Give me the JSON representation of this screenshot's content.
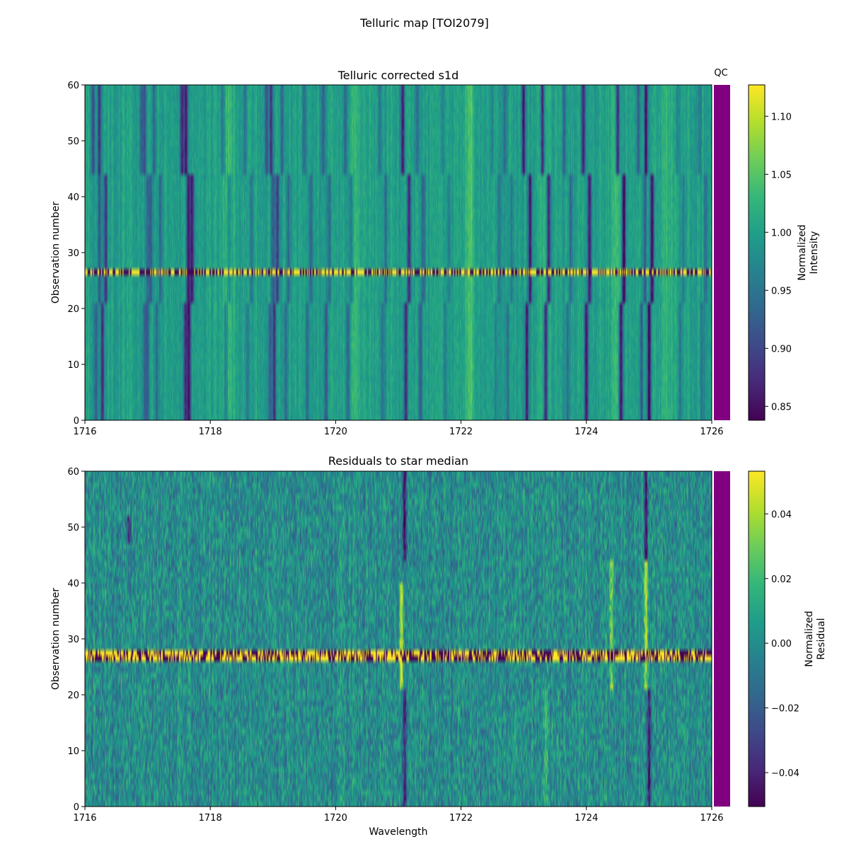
{
  "figure": {
    "suptitle": "Telluric map [TOI2079]"
  },
  "qc_label": "QC",
  "qc_color": "#800080",
  "colormap": "viridis",
  "chart_data": [
    {
      "type": "heatmap",
      "title": "Telluric corrected s1d",
      "xlabel": "",
      "ylabel": "Observation number",
      "xlim": [
        1716,
        1726
      ],
      "ylim": [
        0,
        60
      ],
      "xticks": [
        1716,
        1718,
        1720,
        1722,
        1724,
        1726
      ],
      "yticks": [
        0,
        10,
        20,
        30,
        40,
        50,
        60
      ],
      "colorbar": {
        "label_lines": [
          "Normalized",
          "Intensity"
        ],
        "range": [
          0.838,
          1.127
        ],
        "ticks": [
          "0.85",
          "0.90",
          "0.95",
          "1.00",
          "1.05",
          "1.10"
        ],
        "tick_values": [
          0.85,
          0.9,
          0.95,
          1.0,
          1.05,
          1.1
        ]
      },
      "baseline_value": 1.0,
      "noise_amplitude": 0.028,
      "absorption_lines": [
        {
          "x": 1716.18,
          "depth": 0.08
        },
        {
          "x": 1716.28,
          "depth": 0.12
        },
        {
          "x": 1716.95,
          "depth": 0.06
        },
        {
          "x": 1717.0,
          "depth": 0.08
        },
        {
          "x": 1717.15,
          "depth": 0.06
        },
        {
          "x": 1717.6,
          "depth": 0.13
        },
        {
          "x": 1717.66,
          "depth": 0.14
        },
        {
          "x": 1718.25,
          "depth": 0.06
        },
        {
          "x": 1718.6,
          "depth": 0.05
        },
        {
          "x": 1718.95,
          "depth": 0.08
        },
        {
          "x": 1719.02,
          "depth": 0.12
        },
        {
          "x": 1719.2,
          "depth": 0.06
        },
        {
          "x": 1719.55,
          "depth": 0.06
        },
        {
          "x": 1719.85,
          "depth": 0.07
        },
        {
          "x": 1720.2,
          "depth": 0.06
        },
        {
          "x": 1720.75,
          "depth": 0.05
        },
        {
          "x": 1721.12,
          "depth": 0.14
        },
        {
          "x": 1721.35,
          "depth": 0.07
        },
        {
          "x": 1721.75,
          "depth": 0.04
        },
        {
          "x": 1722.55,
          "depth": 0.04
        },
        {
          "x": 1722.75,
          "depth": 0.05
        },
        {
          "x": 1723.05,
          "depth": 0.14
        },
        {
          "x": 1723.35,
          "depth": 0.15
        },
        {
          "x": 1723.7,
          "depth": 0.06
        },
        {
          "x": 1724.0,
          "depth": 0.14
        },
        {
          "x": 1724.55,
          "depth": 0.16
        },
        {
          "x": 1724.88,
          "depth": 0.08
        },
        {
          "x": 1725.0,
          "depth": 0.16
        },
        {
          "x": 1725.5,
          "depth": 0.04
        },
        {
          "x": 1725.85,
          "depth": 0.05
        }
      ],
      "bright_features": [
        {
          "x": 1718.3,
          "height": 0.04
        },
        {
          "x": 1720.3,
          "height": 0.03
        },
        {
          "x": 1722.15,
          "height": 0.05
        },
        {
          "x": 1723.35,
          "height": 0.03
        },
        {
          "x": 1724.45,
          "height": 0.04
        },
        {
          "x": 1725.3,
          "height": 0.03
        }
      ],
      "line_shift_epochs": [
        {
          "rows": [
            0,
            21
          ],
          "shift": 0.0
        },
        {
          "rows": [
            21,
            44
          ],
          "shift": 0.05
        },
        {
          "rows": [
            44,
            60
          ],
          "shift": -0.05
        }
      ],
      "bad_observations": [
        26
      ]
    },
    {
      "type": "heatmap",
      "title": "Residuals to star median",
      "xlabel": "Wavelength",
      "ylabel": "Observation number",
      "xlim": [
        1716,
        1726
      ],
      "ylim": [
        0,
        60
      ],
      "xticks": [
        1716,
        1718,
        1720,
        1722,
        1724,
        1726
      ],
      "yticks": [
        0,
        10,
        20,
        30,
        40,
        50,
        60
      ],
      "colorbar": {
        "label_lines": [
          "Normalized",
          "Residual"
        ],
        "range": [
          -0.0505,
          0.0532
        ],
        "ticks": [
          "−0.04",
          "−0.02",
          "0.00",
          "0.02",
          "0.04"
        ],
        "tick_values": [
          -0.04,
          -0.02,
          0.0,
          0.02,
          0.04
        ]
      },
      "baseline_value": 0.0,
      "noise_amplitude": 0.018,
      "residual_features": [
        {
          "x": 1721.05,
          "rows": [
            21,
            40
          ],
          "value": 0.045
        },
        {
          "x": 1721.1,
          "rows": [
            0,
            21
          ],
          "value": -0.04
        },
        {
          "x": 1721.1,
          "rows": [
            44,
            60
          ],
          "value": -0.045
        },
        {
          "x": 1724.4,
          "rows": [
            21,
            44
          ],
          "value": 0.035
        },
        {
          "x": 1724.95,
          "rows": [
            21,
            44
          ],
          "value": 0.045
        },
        {
          "x": 1725.0,
          "rows": [
            0,
            21
          ],
          "value": -0.045
        },
        {
          "x": 1724.95,
          "rows": [
            44,
            60
          ],
          "value": -0.045
        },
        {
          "x": 1716.7,
          "rows": [
            47,
            52
          ],
          "value": -0.04
        },
        {
          "x": 1723.35,
          "rows": [
            0,
            21
          ],
          "value": 0.02
        }
      ],
      "bad_observations": [
        26,
        27
      ]
    }
  ]
}
